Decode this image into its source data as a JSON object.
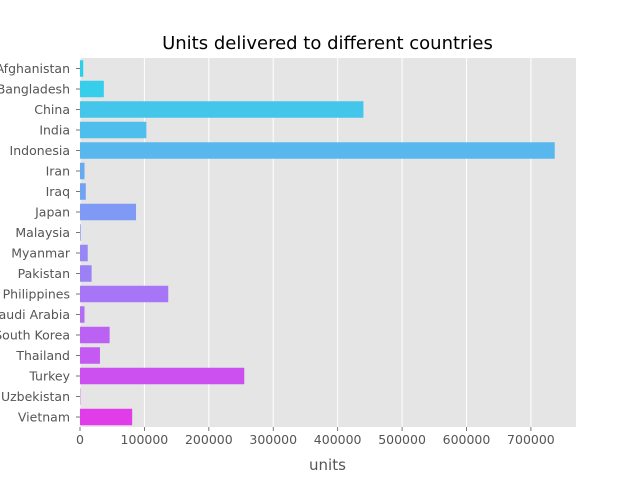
{
  "chart_data": {
    "type": "bar",
    "orientation": "horizontal",
    "title": "Units delivered to different countries",
    "xlabel": "units",
    "ylabel": "",
    "xlim": [
      0,
      770000
    ],
    "xticks": [
      0,
      100000,
      200000,
      300000,
      400000,
      500000,
      600000,
      700000
    ],
    "grid": true,
    "categories": [
      "Afghanistan",
      "Bangladesh",
      "China",
      "India",
      "Indonesia",
      "Iran",
      "Iraq",
      "Japan",
      "Malaysia",
      "Myanmar",
      "Pakistan",
      "Philippines",
      "Saudi Arabia",
      "South Korea",
      "Thailand",
      "Turkey",
      "Uzbekistan",
      "Vietnam"
    ],
    "values": [
      5000,
      37000,
      440000,
      103000,
      737000,
      7000,
      9000,
      87000,
      1000,
      12000,
      18000,
      137000,
      7000,
      46000,
      31000,
      255000,
      500,
      81000
    ],
    "colors": [
      "#2ad0e8",
      "#36ceea",
      "#43c6ea",
      "#4ebeec",
      "#58b8ee",
      "#66aaf0",
      "#72a2f2",
      "#7e9af4",
      "#8a92f5",
      "#9686f6",
      "#9c80f6",
      "#a776f6",
      "#b36cf5",
      "#bb62f4",
      "#c55af2",
      "#cc4ff0",
      "#d746ee",
      "#e03de8"
    ]
  }
}
